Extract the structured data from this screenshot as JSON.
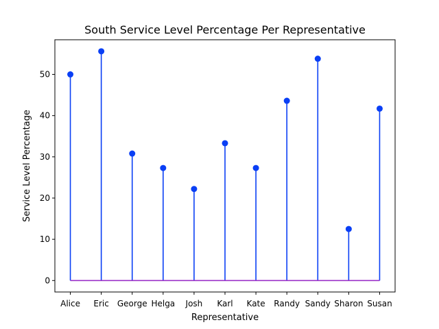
{
  "chart_data": {
    "type": "stem",
    "title": "South Service Level Percentage Per Representative",
    "xlabel": "Representative",
    "ylabel": "Service Level Percentage",
    "categories": [
      "Alice",
      "Eric",
      "George",
      "Helga",
      "Josh",
      "Karl",
      "Kate",
      "Randy",
      "Sandy",
      "Sharon",
      "Susan"
    ],
    "values": [
      50.0,
      55.6,
      30.8,
      27.3,
      22.2,
      33.3,
      27.3,
      43.6,
      53.8,
      12.5,
      41.7
    ],
    "ylim": [
      -2.78,
      58.4
    ],
    "yticks": [
      0,
      10,
      20,
      30,
      40,
      50
    ],
    "grid": false,
    "colors": {
      "stem": "#0a3ff5",
      "marker": "#0a3ff5",
      "baseline": "#9b30c8"
    }
  }
}
